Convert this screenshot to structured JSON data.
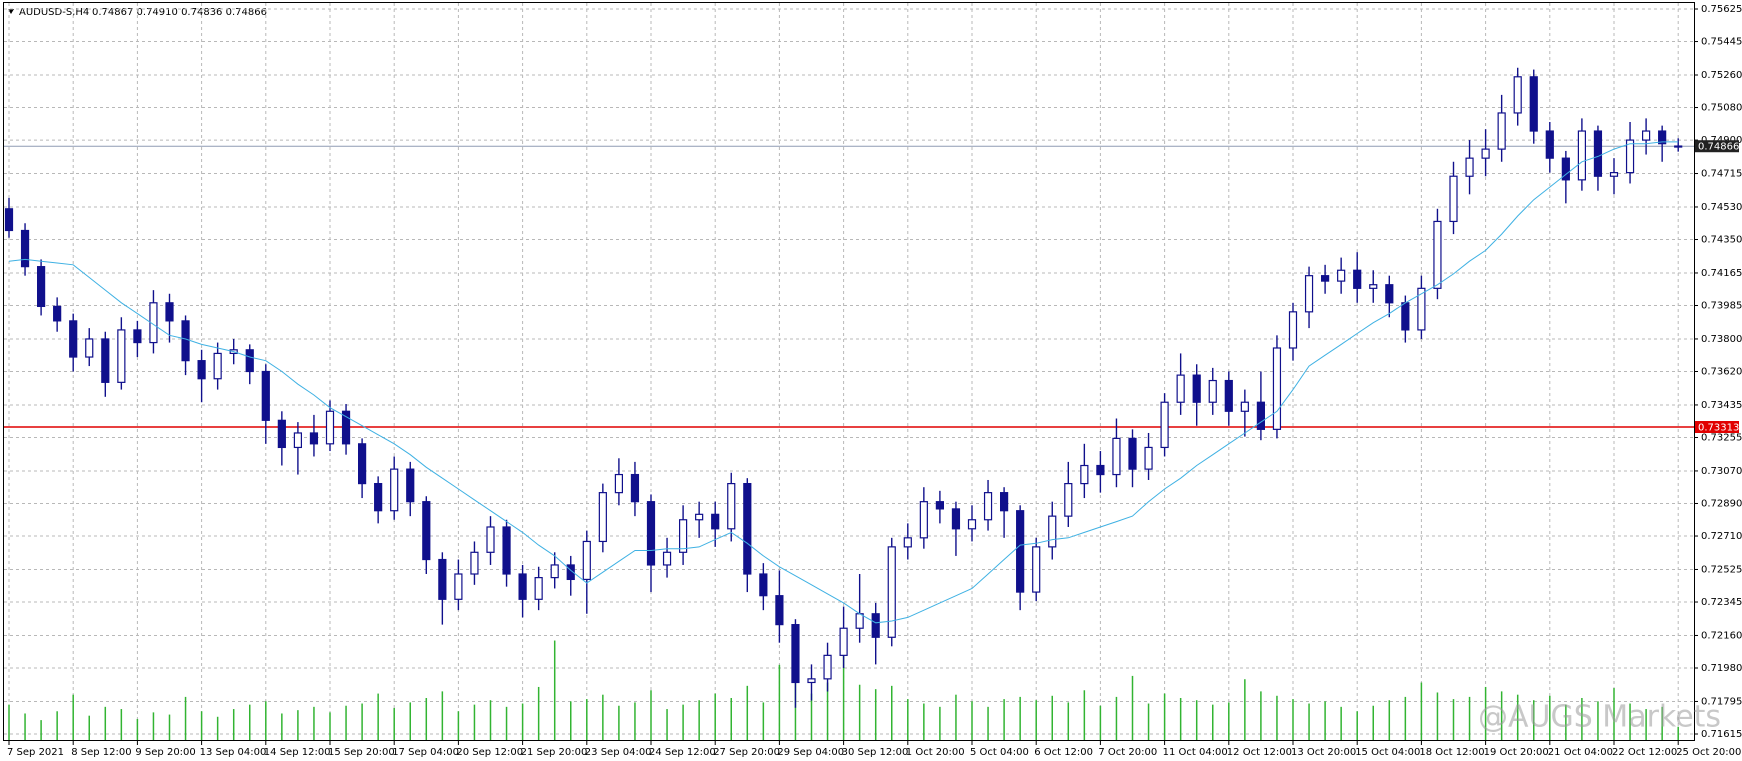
{
  "chart_data": {
    "type": "candlestick",
    "title": "AUDUSD-S,H4",
    "quote": "0.74867 0.74910 0.74836 0.74866",
    "watermark": "@AUGS Markets",
    "color": "#10108c",
    "grid": true,
    "ylim": [
      0.71615,
      0.75625
    ],
    "yticks": [
      0.75625,
      0.75445,
      {
        "value": 0.7526,
        "label": "0.75260"
      },
      {
        "value": 0.7508,
        "label": "0.75080"
      },
      {
        "value": 0.749,
        "label": "0.74900"
      },
      0.74715,
      {
        "value": 0.7453,
        "label": "0.74530"
      },
      {
        "value": 0.7435,
        "label": "0.74350"
      },
      0.74165,
      0.73985,
      {
        "value": 0.738,
        "label": "0.73800"
      },
      {
        "value": 0.7362,
        "label": "0.73620"
      },
      0.73435,
      0.73255,
      {
        "value": 0.7307,
        "label": "0.73070"
      },
      {
        "value": 0.7289,
        "label": "0.72890"
      },
      {
        "value": 0.7271,
        "label": "0.72710"
      },
      0.72525,
      0.72345,
      {
        "value": 0.7216,
        "label": "0.72160"
      },
      {
        "value": 0.7198,
        "label": "0.71980"
      },
      0.71795,
      0.71615
    ],
    "levels": [
      {
        "value": 0.73313,
        "color": "#e10000"
      },
      {
        "value": 0.74866,
        "color": "#8f9bb3"
      }
    ],
    "categories": [
      "7 Sep 2021",
      null,
      null,
      null,
      "8 Sep 12:00",
      null,
      null,
      null,
      "9 Sep 20:00",
      null,
      null,
      null,
      "13 Sep 04:00",
      null,
      null,
      null,
      "14 Sep 12:00",
      null,
      null,
      null,
      "15 Sep 20:00",
      null,
      null,
      null,
      "17 Sep 04:00",
      null,
      null,
      null,
      "20 Sep 12:00",
      null,
      null,
      null,
      "21 Sep 20:00",
      null,
      null,
      null,
      "23 Sep 04:00",
      null,
      null,
      null,
      "24 Sep 12:00",
      null,
      null,
      null,
      "27 Sep 20:00",
      null,
      null,
      null,
      "29 Sep 04:00",
      null,
      null,
      null,
      "30 Sep 12:00",
      null,
      null,
      null,
      "1 Oct 20:00",
      null,
      null,
      null,
      "5 Oct 04:00",
      null,
      null,
      null,
      "6 Oct 12:00",
      null,
      null,
      null,
      "7 Oct 20:00",
      null,
      null,
      null,
      "11 Oct 04:00",
      null,
      null,
      null,
      "12 Oct 12:00",
      null,
      null,
      null,
      "13 Oct 20:00",
      null,
      null,
      null,
      "15 Oct 04:00",
      null,
      null,
      null,
      "18 Oct 12:00",
      null,
      null,
      null,
      "19 Oct 20:00",
      null,
      null,
      null,
      "21 Oct 04:00",
      null,
      null,
      null,
      "22 Oct 12:00",
      null,
      null,
      null,
      "25 Oct 20:00"
    ],
    "ohlc": [
      [
        0.7452,
        0.7458,
        0.7436,
        0.744
      ],
      [
        0.744,
        0.7444,
        0.7415,
        0.742
      ],
      [
        0.742,
        0.7424,
        0.7393,
        0.7398
      ],
      [
        0.7398,
        0.7403,
        0.7384,
        0.739
      ],
      [
        0.739,
        0.7394,
        0.7362,
        0.737
      ],
      [
        0.737,
        0.7386,
        0.7365,
        0.738
      ],
      [
        0.738,
        0.7384,
        0.7348,
        0.7356
      ],
      [
        0.7356,
        0.7392,
        0.7352,
        0.7385
      ],
      [
        0.7385,
        0.739,
        0.737,
        0.7378
      ],
      [
        0.7378,
        0.7407,
        0.7372,
        0.74
      ],
      [
        0.74,
        0.7405,
        0.7378,
        0.739
      ],
      [
        0.739,
        0.7393,
        0.736,
        0.7368
      ],
      [
        0.7368,
        0.7374,
        0.7345,
        0.7358
      ],
      [
        0.7358,
        0.7378,
        0.7352,
        0.7372
      ],
      [
        0.7372,
        0.738,
        0.7366,
        0.7374
      ],
      [
        0.7374,
        0.7377,
        0.7355,
        0.7362
      ],
      [
        0.7362,
        0.7366,
        0.7322,
        0.7335
      ],
      [
        0.7335,
        0.734,
        0.731,
        0.732
      ],
      [
        0.732,
        0.7334,
        0.7305,
        0.7328
      ],
      [
        0.7328,
        0.7338,
        0.7315,
        0.7322
      ],
      [
        0.7322,
        0.7346,
        0.7318,
        0.734
      ],
      [
        0.734,
        0.7344,
        0.7316,
        0.7322
      ],
      [
        0.7322,
        0.7325,
        0.7292,
        0.73
      ],
      [
        0.73,
        0.7304,
        0.7278,
        0.7285
      ],
      [
        0.7285,
        0.7315,
        0.728,
        0.7308
      ],
      [
        0.7308,
        0.7312,
        0.7282,
        0.729
      ],
      [
        0.729,
        0.7293,
        0.725,
        0.7258
      ],
      [
        0.7258,
        0.7262,
        0.7222,
        0.7236
      ],
      [
        0.7236,
        0.7258,
        0.723,
        0.725
      ],
      [
        0.725,
        0.7268,
        0.7244,
        0.7262
      ],
      [
        0.7262,
        0.7282,
        0.7255,
        0.7276
      ],
      [
        0.7276,
        0.728,
        0.7243,
        0.725
      ],
      [
        0.725,
        0.7255,
        0.7226,
        0.7236
      ],
      [
        0.7236,
        0.7254,
        0.723,
        0.7248
      ],
      [
        0.7248,
        0.7262,
        0.7242,
        0.7255
      ],
      [
        0.7255,
        0.726,
        0.7238,
        0.7247
      ],
      [
        0.7247,
        0.7274,
        0.7228,
        0.7268
      ],
      [
        0.7268,
        0.73,
        0.7262,
        0.7295
      ],
      [
        0.7295,
        0.7314,
        0.7288,
        0.7305
      ],
      [
        0.7305,
        0.7312,
        0.7282,
        0.729
      ],
      [
        0.729,
        0.7294,
        0.724,
        0.7255
      ],
      [
        0.7255,
        0.727,
        0.7248,
        0.7262
      ],
      [
        0.7262,
        0.7288,
        0.7255,
        0.728
      ],
      [
        0.728,
        0.729,
        0.727,
        0.7283
      ],
      [
        0.7283,
        0.729,
        0.7265,
        0.7275
      ],
      [
        0.7275,
        0.7306,
        0.7268,
        0.73
      ],
      [
        0.73,
        0.7303,
        0.724,
        0.725
      ],
      [
        0.725,
        0.7256,
        0.723,
        0.7238
      ],
      [
        0.7238,
        0.7252,
        0.7212,
        0.7222
      ],
      [
        0.7222,
        0.7225,
        0.7176,
        0.719
      ],
      [
        0.719,
        0.72,
        0.718,
        0.7192
      ],
      [
        0.7192,
        0.7212,
        0.7185,
        0.7205
      ],
      [
        0.7205,
        0.7232,
        0.7198,
        0.722
      ],
      [
        0.722,
        0.725,
        0.7212,
        0.7228
      ],
      [
        0.7228,
        0.7234,
        0.72,
        0.7215
      ],
      [
        0.7215,
        0.727,
        0.721,
        0.7265
      ],
      [
        0.7265,
        0.7278,
        0.7258,
        0.727
      ],
      [
        0.727,
        0.7298,
        0.7264,
        0.729
      ],
      [
        0.729,
        0.7296,
        0.7278,
        0.7286
      ],
      [
        0.7286,
        0.729,
        0.726,
        0.7275
      ],
      [
        0.7275,
        0.7288,
        0.7268,
        0.728
      ],
      [
        0.728,
        0.7302,
        0.7274,
        0.7295
      ],
      [
        0.7295,
        0.7298,
        0.727,
        0.7285
      ],
      [
        0.7285,
        0.7288,
        0.723,
        0.724
      ],
      [
        0.724,
        0.727,
        0.7235,
        0.7265
      ],
      [
        0.7265,
        0.729,
        0.7258,
        0.7282
      ],
      [
        0.7282,
        0.7312,
        0.7276,
        0.73
      ],
      [
        0.73,
        0.7322,
        0.7292,
        0.731
      ],
      [
        0.731,
        0.7318,
        0.7295,
        0.7305
      ],
      [
        0.7305,
        0.7336,
        0.7298,
        0.7325
      ],
      [
        0.7325,
        0.733,
        0.7298,
        0.7308
      ],
      [
        0.7308,
        0.7328,
        0.7302,
        0.732
      ],
      [
        0.732,
        0.735,
        0.7315,
        0.7345
      ],
      [
        0.7345,
        0.7372,
        0.7338,
        0.736
      ],
      [
        0.736,
        0.7366,
        0.7332,
        0.7345
      ],
      [
        0.7345,
        0.7364,
        0.7338,
        0.7357
      ],
      [
        0.7357,
        0.7362,
        0.7332,
        0.734
      ],
      [
        0.734,
        0.7352,
        0.7326,
        0.7345
      ],
      [
        0.7345,
        0.7362,
        0.7324,
        0.733
      ],
      [
        0.733,
        0.7382,
        0.7325,
        0.7375
      ],
      [
        0.7375,
        0.74,
        0.7368,
        0.7395
      ],
      [
        0.7395,
        0.742,
        0.7386,
        0.7415
      ],
      [
        0.7415,
        0.7421,
        0.7405,
        0.7412
      ],
      [
        0.7412,
        0.7425,
        0.7405,
        0.7418
      ],
      [
        0.7418,
        0.7428,
        0.74,
        0.7408
      ],
      [
        0.7408,
        0.7418,
        0.74,
        0.741
      ],
      [
        0.741,
        0.7415,
        0.7392,
        0.74
      ],
      [
        0.74,
        0.7404,
        0.7378,
        0.7385
      ],
      [
        0.7385,
        0.7415,
        0.738,
        0.7408
      ],
      [
        0.7408,
        0.7452,
        0.7402,
        0.7445
      ],
      [
        0.7445,
        0.7478,
        0.7438,
        0.747
      ],
      [
        0.747,
        0.749,
        0.746,
        0.748
      ],
      [
        0.748,
        0.7496,
        0.747,
        0.7485
      ],
      [
        0.7485,
        0.7515,
        0.7478,
        0.7505
      ],
      [
        0.7505,
        0.753,
        0.7498,
        0.7525
      ],
      [
        0.7525,
        0.7529,
        0.7488,
        0.7495
      ],
      [
        0.7495,
        0.75,
        0.7472,
        0.748
      ],
      [
        0.748,
        0.7484,
        0.7455,
        0.7468
      ],
      [
        0.7468,
        0.7502,
        0.7462,
        0.7495
      ],
      [
        0.7495,
        0.7498,
        0.7462,
        0.747
      ],
      [
        0.747,
        0.748,
        0.746,
        0.7472
      ],
      [
        0.7472,
        0.75,
        0.7466,
        0.749
      ],
      [
        0.749,
        0.7502,
        0.7482,
        0.7495
      ],
      [
        0.7495,
        0.7498,
        0.7478,
        0.7488
      ],
      [
        0.74867,
        0.7491,
        0.74836,
        0.74866
      ]
    ],
    "ma": {
      "color": "#3fb1e3",
      "values": [
        0.7423,
        0.7424,
        0.7423,
        0.7422,
        0.7421,
        0.7414,
        0.7407,
        0.74,
        0.7394,
        0.7388,
        0.7382,
        0.738,
        0.7377,
        0.7375,
        0.7373,
        0.737,
        0.7368,
        0.7362,
        0.7355,
        0.7349,
        0.7342,
        0.7337,
        0.7332,
        0.7327,
        0.7322,
        0.7316,
        0.7309,
        0.7303,
        0.7297,
        0.7291,
        0.7285,
        0.7279,
        0.7273,
        0.7266,
        0.726,
        0.7252,
        0.7245,
        0.7251,
        0.7257,
        0.7263,
        0.7263,
        0.7264,
        0.7264,
        0.7265,
        0.7269,
        0.7273,
        0.7267,
        0.726,
        0.7254,
        0.7249,
        0.7244,
        0.7239,
        0.7234,
        0.7228,
        0.7223,
        0.7224,
        0.7226,
        0.723,
        0.7234,
        0.7238,
        0.7242,
        0.725,
        0.7258,
        0.7266,
        0.7267,
        0.7269,
        0.727,
        0.7273,
        0.7276,
        0.7279,
        0.7282,
        0.729,
        0.7297,
        0.7303,
        0.731,
        0.7316,
        0.7322,
        0.7328,
        0.7334,
        0.734,
        0.7352,
        0.7365,
        0.7371,
        0.7377,
        0.7383,
        0.7389,
        0.7394,
        0.74,
        0.7405,
        0.741,
        0.7416,
        0.7423,
        0.7429,
        0.7438,
        0.7448,
        0.7457,
        0.7464,
        0.7471,
        0.7478,
        0.7481,
        0.7485,
        0.7488,
        0.7488,
        0.7489,
        0.7489
      ]
    },
    "volume": {
      "color": "#32b432",
      "values": [
        3200,
        2400,
        1800,
        2600,
        4100,
        2200,
        3000,
        2800,
        1900,
        2500,
        2300,
        3900,
        2600,
        2100,
        2800,
        3200,
        3500,
        2400,
        2700,
        3000,
        2500,
        3100,
        3300,
        4200,
        2900,
        3400,
        3800,
        4400,
        2600,
        3200,
        3600,
        3000,
        3300,
        4800,
        9000,
        3500,
        3700,
        4100,
        3100,
        3400,
        4500,
        2800,
        3200,
        3600,
        4200,
        3800,
        4900,
        3400,
        6800,
        9500,
        4200,
        5200,
        8600,
        5000,
        4600,
        4900,
        3700,
        3300,
        3000,
        4100,
        3500,
        3000,
        3700,
        3900,
        3600,
        4000,
        3400,
        4500,
        3100,
        3900,
        5800,
        3300,
        4200,
        3800,
        3600,
        3200,
        3400,
        5500,
        4400,
        4000,
        3700,
        3300,
        3500,
        3000,
        2600,
        3100,
        3600,
        3900,
        5200,
        4300,
        3700,
        3900,
        4800,
        4400,
        4100,
        3600,
        4000,
        3200,
        3800,
        3500,
        4700,
        3300,
        2800,
        3000,
        1200
      ]
    }
  }
}
